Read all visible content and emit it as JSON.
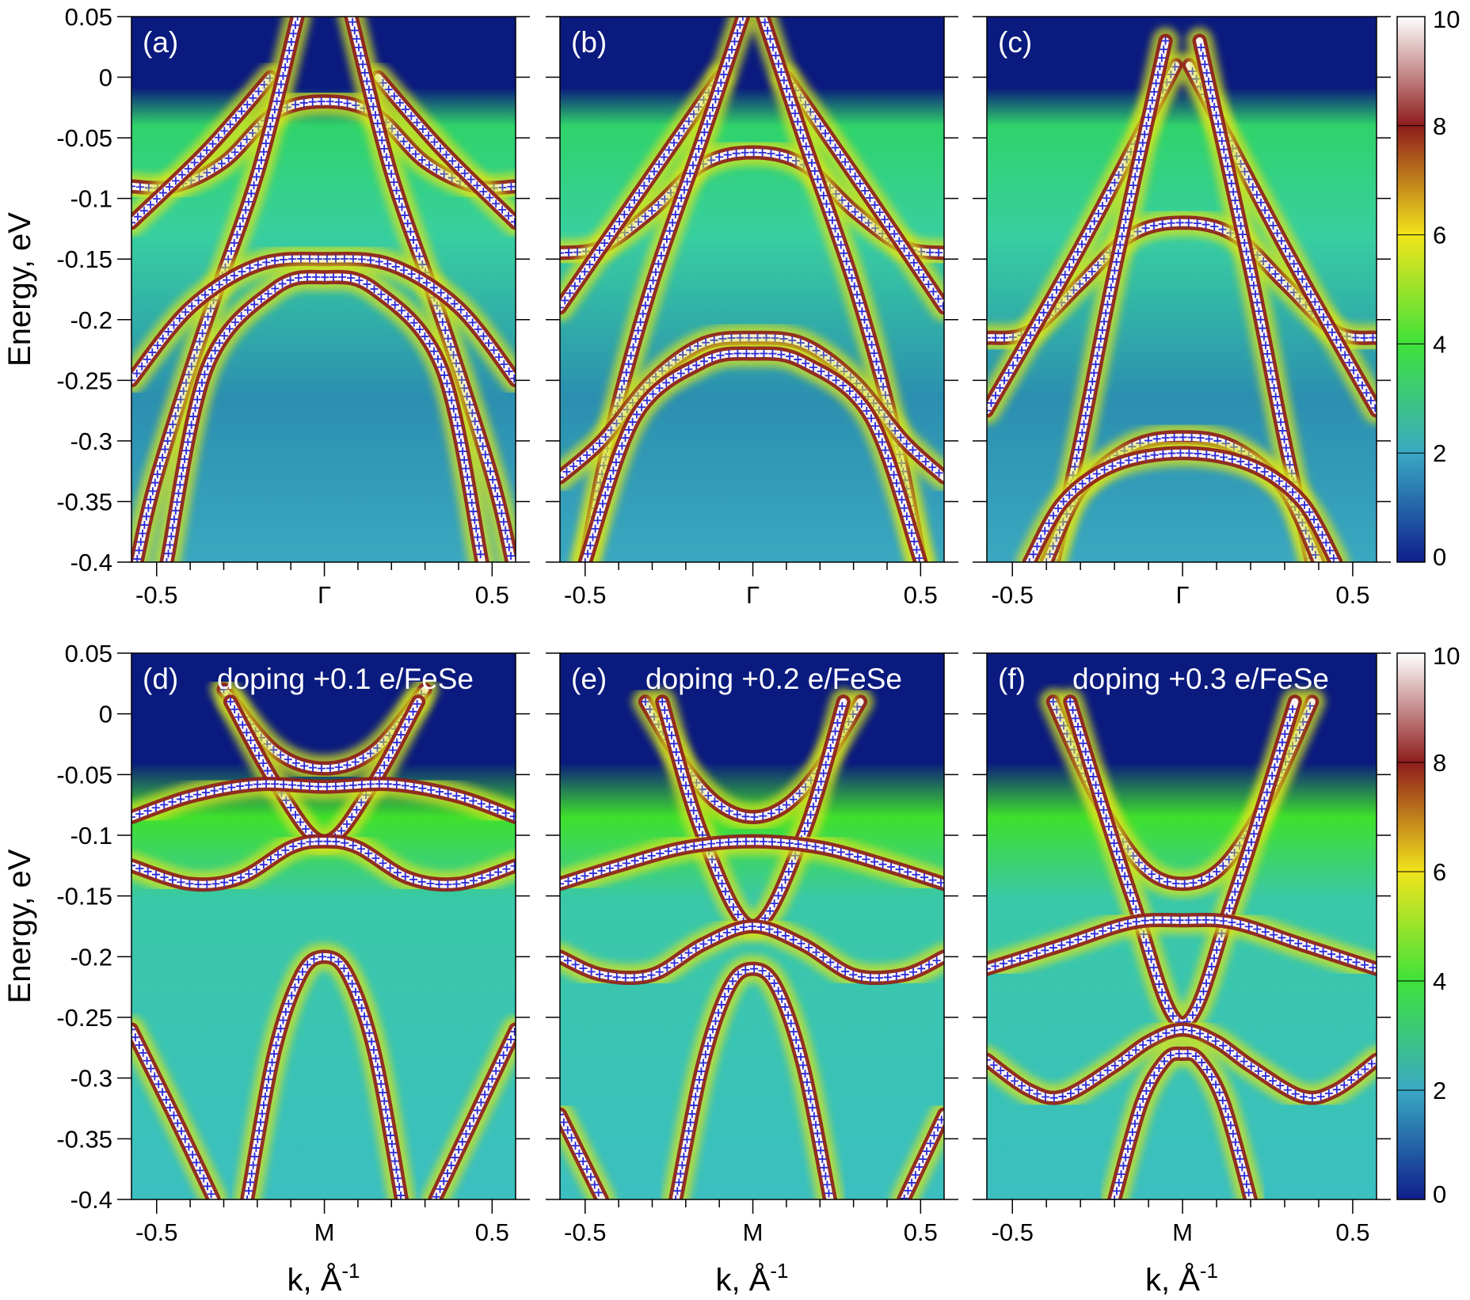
{
  "chart_data": [
    {
      "type": "heatmap",
      "title": "(a)",
      "ylabel": "Energy, eV",
      "marker_color": "#2a2ad8",
      "xlim": [
        -0.575,
        0.57
      ],
      "ylim": [
        -0.4,
        0.05
      ],
      "xticks": [
        -0.5,
        {
          "value": 0,
          "label": "Γ"
        },
        0.5
      ],
      "xminor": [
        -0.4,
        -0.3,
        -0.2,
        -0.1,
        0.1,
        0.2,
        0.3,
        0.4
      ],
      "yticks": [
        0.05,
        0,
        -0.05,
        -0.1,
        -0.15,
        -0.2,
        -0.25,
        -0.3,
        -0.35,
        -0.4
      ],
      "series": [
        {
          "x": [
            -0.575,
            -0.45,
            -0.3,
            -0.15,
            0,
            0.15,
            0.3,
            0.45,
            0.57
          ],
          "values": [
            -0.09,
            -0.09,
            -0.07,
            -0.03,
            -0.02,
            -0.03,
            -0.07,
            -0.09,
            -0.09
          ]
        },
        {
          "x": [
            -0.575,
            -0.35,
            -0.16,
            null,
            0.16,
            0.35,
            0.57
          ],
          "values": [
            -0.12,
            -0.06,
            0,
            null,
            0,
            -0.06,
            -0.12
          ]
        },
        {
          "x": [
            -0.08,
            -0.2,
            -0.35,
            -0.5,
            -0.56,
            null,
            0.08,
            0.2,
            0.35,
            0.5,
            0.56
          ],
          "values": [
            0.05,
            -0.08,
            -0.2,
            -0.33,
            -0.4,
            null,
            0.05,
            -0.08,
            -0.2,
            -0.33,
            -0.4
          ]
        },
        {
          "x": [
            -0.575,
            -0.4,
            -0.2,
            0,
            0.2,
            0.4,
            0.57
          ],
          "values": [
            -0.25,
            -0.19,
            -0.155,
            -0.15,
            -0.155,
            -0.19,
            -0.25
          ]
        },
        {
          "x": [
            -0.47,
            -0.35,
            -0.15,
            0,
            0.15,
            0.35,
            0.47
          ],
          "values": [
            -0.4,
            -0.24,
            -0.175,
            -0.165,
            -0.175,
            -0.24,
            -0.4
          ]
        }
      ]
    },
    {
      "type": "heatmap",
      "title": "(b)",
      "marker_color": "#2a2ad8",
      "xlim": [
        -0.575,
        0.57
      ],
      "ylim": [
        -0.4,
        0.05
      ],
      "xticks": [
        -0.5,
        {
          "value": 0,
          "label": "Γ"
        },
        0.5
      ],
      "xminor": [
        -0.4,
        -0.3,
        -0.2,
        -0.1,
        0.1,
        0.2,
        0.3,
        0.4
      ],
      "yticks": [
        0.05,
        0,
        -0.05,
        -0.1,
        -0.15,
        -0.2,
        -0.25,
        -0.3,
        -0.35,
        -0.4
      ],
      "series": [
        {
          "x": [
            -0.575,
            -0.45,
            -0.3,
            -0.15,
            0,
            0.15,
            0.3,
            0.45,
            0.57
          ],
          "values": [
            -0.145,
            -0.14,
            -0.11,
            -0.072,
            -0.062,
            -0.072,
            -0.11,
            -0.14,
            -0.145
          ]
        },
        {
          "x": [
            -0.575,
            -0.35,
            -0.1,
            null,
            0.1,
            0.35,
            0.57
          ],
          "values": [
            -0.19,
            -0.1,
            0,
            null,
            0,
            -0.1,
            -0.19
          ]
        },
        {
          "x": [
            -0.03,
            -0.15,
            -0.3,
            -0.42,
            -0.5,
            null,
            0.03,
            0.15,
            0.3,
            0.42,
            0.5
          ],
          "values": [
            0.05,
            -0.05,
            -0.17,
            -0.29,
            -0.4,
            null,
            0.05,
            -0.05,
            -0.17,
            -0.29,
            -0.4
          ]
        },
        {
          "x": [
            -0.575,
            -0.45,
            -0.3,
            -0.15,
            0,
            0.15,
            0.3,
            0.45,
            0.57
          ],
          "values": [
            -0.33,
            -0.3,
            -0.25,
            -0.22,
            -0.215,
            -0.22,
            -0.25,
            -0.3,
            -0.33
          ]
        },
        {
          "x": [
            -0.5,
            -0.35,
            -0.15,
            0,
            0.15,
            0.35,
            0.5
          ],
          "values": [
            -0.4,
            -0.28,
            -0.235,
            -0.228,
            -0.235,
            -0.28,
            -0.4
          ]
        }
      ]
    },
    {
      "type": "heatmap",
      "title": "(c)",
      "marker_color": "#2a2ad8",
      "xlim": [
        -0.575,
        0.57
      ],
      "ylim": [
        -0.4,
        0.05
      ],
      "xticks": [
        -0.5,
        {
          "value": 0,
          "label": "Γ"
        },
        0.5
      ],
      "xminor": [
        -0.4,
        -0.3,
        -0.2,
        -0.1,
        0.1,
        0.2,
        0.3,
        0.4
      ],
      "yticks": [
        0.05,
        0,
        -0.05,
        -0.1,
        -0.15,
        -0.2,
        -0.25,
        -0.3,
        -0.35,
        -0.4
      ],
      "series": [
        {
          "x": [
            -0.575,
            -0.45,
            -0.3,
            -0.15,
            0,
            0.15,
            0.3,
            0.45,
            0.57
          ],
          "values": [
            -0.215,
            -0.21,
            -0.17,
            -0.13,
            -0.12,
            -0.13,
            -0.17,
            -0.21,
            -0.215
          ]
        },
        {
          "x": [
            -0.575,
            -0.3,
            -0.02,
            null,
            0.02,
            0.3,
            0.57
          ],
          "values": [
            -0.275,
            -0.14,
            0.01,
            null,
            0.01,
            -0.14,
            -0.275
          ]
        },
        {
          "x": [
            -0.05,
            -0.2,
            -0.3,
            -0.38,
            null,
            0.05,
            0.2,
            0.3,
            0.38
          ],
          "values": [
            0.03,
            -0.16,
            -0.3,
            -0.4,
            null,
            0.03,
            -0.16,
            -0.3,
            -0.4
          ]
        },
        {
          "x": [
            -0.4,
            -0.3,
            -0.15,
            0,
            0.15,
            0.3,
            0.4
          ],
          "values": [
            -0.4,
            -0.34,
            -0.305,
            -0.297,
            -0.305,
            -0.34,
            -0.4
          ]
        },
        {
          "x": [
            -0.45,
            -0.35,
            -0.2,
            0,
            0.2,
            0.35,
            0.45
          ],
          "values": [
            -0.4,
            -0.35,
            -0.32,
            -0.31,
            -0.32,
            -0.35,
            -0.4
          ]
        }
      ]
    },
    {
      "type": "heatmap",
      "title": "(d)",
      "annotation": "doping +0.1 e/FeSe",
      "ylabel": "Energy, eV",
      "xlabel": "k, Å",
      "xlabel_sup": "-1",
      "marker_color": "#2a2ad8",
      "xlim": [
        -0.575,
        0.57
      ],
      "ylim": [
        -0.4,
        0.05
      ],
      "xticks": [
        -0.5,
        {
          "value": 0,
          "label": "M"
        },
        0.5
      ],
      "xminor": [
        -0.4,
        -0.3,
        -0.2,
        -0.1,
        0.1,
        0.2,
        0.3,
        0.4
      ],
      "yticks": [
        0.05,
        0,
        -0.05,
        -0.1,
        -0.15,
        -0.2,
        -0.25,
        -0.3,
        -0.35,
        -0.4
      ],
      "series": [
        {
          "x": [
            -0.3,
            -0.15,
            0,
            0.15,
            0.3
          ],
          "values": [
            0.02,
            -0.03,
            -0.045,
            -0.03,
            0.02
          ]
        },
        {
          "x": [
            -0.28,
            -0.14,
            0,
            0.14,
            0.28
          ],
          "values": [
            0.01,
            -0.06,
            -0.105,
            -0.06,
            0.01
          ]
        },
        {
          "x": [
            -0.575,
            -0.4,
            -0.2,
            0,
            0.2,
            0.4,
            0.57
          ],
          "values": [
            -0.085,
            -0.068,
            -0.058,
            -0.06,
            -0.058,
            -0.068,
            -0.085
          ]
        },
        {
          "x": [
            -0.575,
            -0.4,
            -0.25,
            -0.1,
            0,
            0.1,
            0.25,
            0.4,
            0.57
          ],
          "values": [
            -0.125,
            -0.14,
            -0.135,
            -0.11,
            -0.105,
            -0.11,
            -0.135,
            -0.14,
            -0.125
          ]
        },
        {
          "x": [
            -0.23,
            -0.15,
            -0.07,
            0,
            0.07,
            0.15,
            0.23
          ],
          "values": [
            -0.4,
            -0.28,
            -0.215,
            -0.2,
            -0.215,
            -0.28,
            -0.4
          ]
        },
        {
          "x": [
            -0.575,
            -0.45,
            -0.33,
            null,
            0.33,
            0.45,
            0.57
          ],
          "values": [
            -0.26,
            -0.33,
            -0.4,
            null,
            -0.4,
            -0.33,
            -0.26
          ]
        }
      ]
    },
    {
      "type": "heatmap",
      "title": "(e)",
      "annotation": "doping +0.2 e/FeSe",
      "xlabel": "k, Å",
      "xlabel_sup": "-1",
      "marker_color": "#2a2ad8",
      "xlim": [
        -0.575,
        0.57
      ],
      "ylim": [
        -0.4,
        0.05
      ],
      "xticks": [
        -0.5,
        {
          "value": 0,
          "label": "M"
        },
        0.5
      ],
      "xminor": [
        -0.4,
        -0.3,
        -0.2,
        -0.1,
        0.1,
        0.2,
        0.3,
        0.4
      ],
      "yticks": [
        0.05,
        0,
        -0.05,
        -0.1,
        -0.15,
        -0.2,
        -0.25,
        -0.3,
        -0.35,
        -0.4
      ],
      "series": [
        {
          "x": [
            -0.32,
            -0.2,
            -0.1,
            0,
            0.1,
            0.2,
            0.32
          ],
          "values": [
            0.01,
            -0.045,
            -0.075,
            -0.085,
            -0.075,
            -0.045,
            0.01
          ]
        },
        {
          "x": [
            -0.27,
            -0.15,
            0,
            0.15,
            0.27
          ],
          "values": [
            0.01,
            -0.1,
            -0.175,
            -0.1,
            0.01
          ]
        },
        {
          "x": [
            -0.575,
            -0.4,
            -0.2,
            0,
            0.2,
            0.4,
            0.57
          ],
          "values": [
            -0.14,
            -0.125,
            -0.11,
            -0.105,
            -0.11,
            -0.125,
            -0.14
          ]
        },
        {
          "x": [
            -0.575,
            -0.45,
            -0.3,
            -0.15,
            0,
            0.15,
            0.3,
            0.45,
            0.57
          ],
          "values": [
            -0.2,
            -0.215,
            -0.215,
            -0.19,
            -0.175,
            -0.19,
            -0.215,
            -0.215,
            -0.2
          ]
        },
        {
          "x": [
            -0.23,
            -0.15,
            -0.07,
            0,
            0.07,
            0.15,
            0.23
          ],
          "values": [
            -0.4,
            -0.29,
            -0.225,
            -0.21,
            -0.225,
            -0.29,
            -0.4
          ]
        },
        {
          "x": [
            -0.575,
            -0.45,
            null,
            0.45,
            0.57
          ],
          "values": [
            -0.33,
            -0.4,
            null,
            -0.4,
            -0.33
          ]
        }
      ]
    },
    {
      "type": "heatmap",
      "title": "(f)",
      "annotation": "doping +0.3 e/FeSe",
      "xlabel": "k, Å",
      "xlabel_sup": "-1",
      "marker_color": "#2a2ad8",
      "xlim": [
        -0.575,
        0.57
      ],
      "ylim": [
        -0.4,
        0.05
      ],
      "xticks": [
        -0.5,
        {
          "value": 0,
          "label": "M"
        },
        0.5
      ],
      "xminor": [
        -0.4,
        -0.3,
        -0.2,
        -0.1,
        0.1,
        0.2,
        0.3,
        0.4
      ],
      "yticks": [
        0.05,
        0,
        -0.05,
        -0.1,
        -0.15,
        -0.2,
        -0.25,
        -0.3,
        -0.35,
        -0.4
      ],
      "series": [
        {
          "x": [
            -0.38,
            -0.25,
            -0.12,
            0,
            0.12,
            0.25,
            0.38
          ],
          "values": [
            0.01,
            -0.07,
            -0.125,
            -0.14,
            -0.125,
            -0.07,
            0.01
          ]
        },
        {
          "x": [
            -0.33,
            -0.15,
            0,
            0.15,
            0.33
          ],
          "values": [
            0.01,
            -0.15,
            -0.255,
            -0.15,
            0.01
          ]
        },
        {
          "x": [
            -0.575,
            -0.35,
            -0.15,
            0,
            0.15,
            0.35,
            0.57
          ],
          "values": [
            -0.21,
            -0.19,
            -0.172,
            -0.17,
            -0.172,
            -0.19,
            -0.21
          ]
        },
        {
          "x": [
            -0.575,
            -0.45,
            -0.35,
            -0.2,
            -0.1,
            0,
            0.1,
            0.2,
            0.35,
            0.45,
            0.57
          ],
          "values": [
            -0.285,
            -0.31,
            -0.315,
            -0.29,
            -0.27,
            -0.26,
            -0.27,
            -0.29,
            -0.315,
            -0.31,
            -0.285
          ]
        },
        {
          "x": [
            -0.2,
            -0.12,
            -0.05,
            0,
            0.05,
            0.12,
            0.2
          ],
          "values": [
            -0.4,
            -0.32,
            -0.285,
            -0.28,
            -0.285,
            -0.32,
            -0.4
          ]
        }
      ]
    },
    {
      "type": "colorbar",
      "ylim": [
        0,
        10
      ],
      "yticks": [
        0,
        2,
        4,
        6,
        8,
        10
      ],
      "colors": [
        "#0f1f8c",
        "#3aa9c4",
        "#3fe23a",
        "#f2e41c",
        "#8e1c1c",
        "#ffffff"
      ]
    },
    {
      "type": "colorbar",
      "ylim": [
        0,
        10
      ],
      "yticks": [
        0,
        2,
        4,
        6,
        8,
        10
      ],
      "colors": [
        "#0f1f8c",
        "#3aa9c4",
        "#3fe23a",
        "#f2e41c",
        "#8e1c1c",
        "#ffffff"
      ]
    }
  ]
}
